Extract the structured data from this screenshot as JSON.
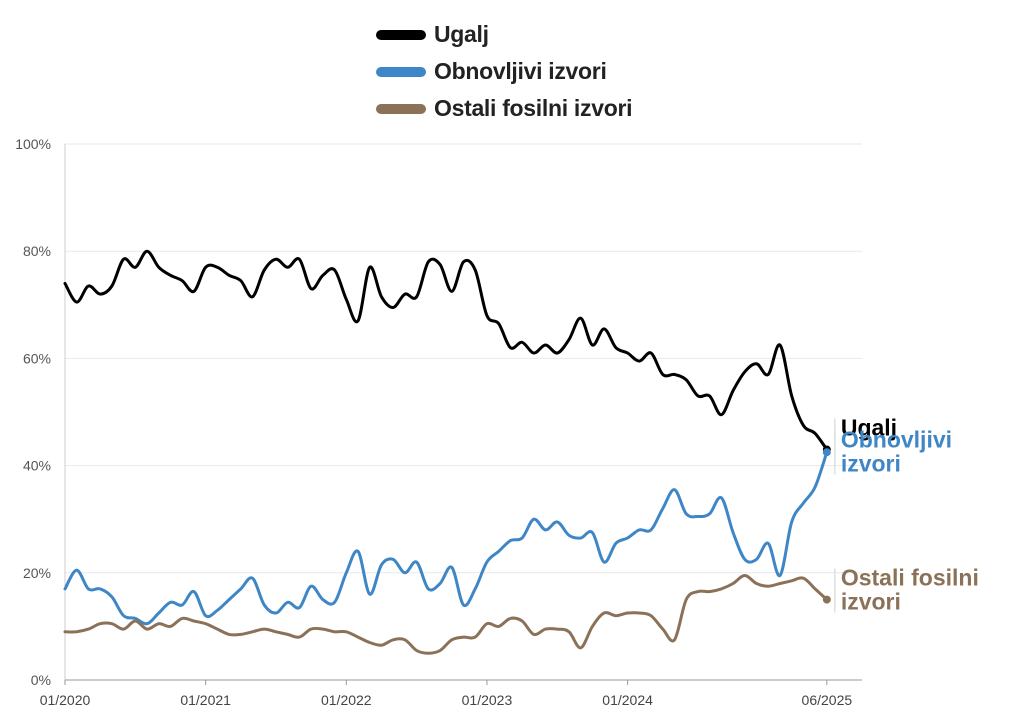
{
  "chart_data": {
    "type": "line",
    "yformat": "percent",
    "ylim": [
      0,
      100
    ],
    "xlim": [
      "2020-01",
      "2025-09"
    ],
    "grid": true,
    "legend_position": "top",
    "y_ticks": [
      "0%",
      "20%",
      "40%",
      "60%",
      "80%",
      "100%"
    ],
    "x_ticks": [
      {
        "date": "2020-01",
        "label": "01/2020"
      },
      {
        "date": "2021-01",
        "label": "01/2021"
      },
      {
        "date": "2022-01",
        "label": "01/2022"
      },
      {
        "date": "2023-01",
        "label": "01/2023"
      },
      {
        "date": "2024-01",
        "label": "01/2024"
      },
      {
        "date": "2025-06",
        "label": "06/2025"
      }
    ],
    "series": [
      {
        "name": "Ugalj",
        "end_label": [
          "Ugalj"
        ],
        "color": "#000000",
        "values": [
          [
            "2020-01",
            74
          ],
          [
            "2020-02",
            70.5
          ],
          [
            "2020-03",
            73.5
          ],
          [
            "2020-04",
            72
          ],
          [
            "2020-05",
            73.5
          ],
          [
            "2020-06",
            78.5
          ],
          [
            "2020-07",
            77
          ],
          [
            "2020-08",
            80
          ],
          [
            "2020-09",
            77
          ],
          [
            "2020-10",
            75.5
          ],
          [
            "2020-11",
            74.5
          ],
          [
            "2020-12",
            72.5
          ],
          [
            "2021-01",
            77
          ],
          [
            "2021-02",
            77
          ],
          [
            "2021-03",
            75.5
          ],
          [
            "2021-04",
            74.5
          ],
          [
            "2021-05",
            71.5
          ],
          [
            "2021-06",
            76.5
          ],
          [
            "2021-07",
            78.5
          ],
          [
            "2021-08",
            77
          ],
          [
            "2021-09",
            78.5
          ],
          [
            "2021-10",
            73
          ],
          [
            "2021-11",
            75.5
          ],
          [
            "2021-12",
            76.5
          ],
          [
            "2022-01",
            71
          ],
          [
            "2022-02",
            67
          ],
          [
            "2022-03",
            77
          ],
          [
            "2022-04",
            71.5
          ],
          [
            "2022-05",
            69.5
          ],
          [
            "2022-06",
            72
          ],
          [
            "2022-07",
            71.5
          ],
          [
            "2022-08",
            78
          ],
          [
            "2022-09",
            77.5
          ],
          [
            "2022-10",
            72.5
          ],
          [
            "2022-11",
            78
          ],
          [
            "2022-12",
            76.5
          ],
          [
            "2023-01",
            68
          ],
          [
            "2023-02",
            66.5
          ],
          [
            "2023-03",
            62
          ],
          [
            "2023-04",
            63
          ],
          [
            "2023-05",
            61
          ],
          [
            "2023-06",
            62.5
          ],
          [
            "2023-07",
            61
          ],
          [
            "2023-08",
            63.5
          ],
          [
            "2023-09",
            67.5
          ],
          [
            "2023-10",
            62.5
          ],
          [
            "2023-11",
            65.5
          ],
          [
            "2023-12",
            62
          ],
          [
            "2024-01",
            61
          ],
          [
            "2024-02",
            59.5
          ],
          [
            "2024-03",
            61
          ],
          [
            "2024-04",
            57
          ],
          [
            "2024-05",
            57
          ],
          [
            "2024-06",
            56
          ],
          [
            "2024-07",
            53
          ],
          [
            "2024-08",
            53
          ],
          [
            "2024-09",
            49.5
          ],
          [
            "2024-10",
            54
          ],
          [
            "2024-11",
            57.5
          ],
          [
            "2024-12",
            59
          ],
          [
            "2025-01",
            57
          ],
          [
            "2025-02",
            62.5
          ],
          [
            "2025-03",
            53
          ],
          [
            "2025-04",
            47.5
          ],
          [
            "2025-05",
            46
          ],
          [
            "2025-06",
            43
          ]
        ]
      },
      {
        "name": "Obnovljivi izvori",
        "end_label": [
          "Obnovljivi",
          "izvori"
        ],
        "color": "#3f86c6",
        "values": [
          [
            "2020-01",
            17
          ],
          [
            "2020-02",
            20.5
          ],
          [
            "2020-03",
            17
          ],
          [
            "2020-04",
            17
          ],
          [
            "2020-05",
            15.5
          ],
          [
            "2020-06",
            12
          ],
          [
            "2020-07",
            11.5
          ],
          [
            "2020-08",
            10.5
          ],
          [
            "2020-09",
            12.5
          ],
          [
            "2020-10",
            14.5
          ],
          [
            "2020-11",
            14
          ],
          [
            "2020-12",
            16.5
          ],
          [
            "2021-01",
            12
          ],
          [
            "2021-02",
            13
          ],
          [
            "2021-03",
            15
          ],
          [
            "2021-04",
            17
          ],
          [
            "2021-05",
            19
          ],
          [
            "2021-06",
            14
          ],
          [
            "2021-07",
            12.5
          ],
          [
            "2021-08",
            14.5
          ],
          [
            "2021-09",
            13.5
          ],
          [
            "2021-10",
            17.5
          ],
          [
            "2021-11",
            15
          ],
          [
            "2021-12",
            14.5
          ],
          [
            "2022-01",
            20
          ],
          [
            "2022-02",
            24
          ],
          [
            "2022-03",
            16
          ],
          [
            "2022-04",
            21.5
          ],
          [
            "2022-05",
            22.5
          ],
          [
            "2022-06",
            20
          ],
          [
            "2022-07",
            22
          ],
          [
            "2022-08",
            17
          ],
          [
            "2022-09",
            18
          ],
          [
            "2022-10",
            21
          ],
          [
            "2022-11",
            14
          ],
          [
            "2022-12",
            17
          ],
          [
            "2023-01",
            22
          ],
          [
            "2023-02",
            24
          ],
          [
            "2023-03",
            26
          ],
          [
            "2023-04",
            26.5
          ],
          [
            "2023-05",
            30
          ],
          [
            "2023-06",
            28
          ],
          [
            "2023-07",
            29.5
          ],
          [
            "2023-08",
            27
          ],
          [
            "2023-09",
            26.5
          ],
          [
            "2023-10",
            27.5
          ],
          [
            "2023-11",
            22
          ],
          [
            "2023-12",
            25.5
          ],
          [
            "2024-01",
            26.5
          ],
          [
            "2024-02",
            28
          ],
          [
            "2024-03",
            28
          ],
          [
            "2024-04",
            32
          ],
          [
            "2024-05",
            35.5
          ],
          [
            "2024-06",
            31
          ],
          [
            "2024-07",
            30.5
          ],
          [
            "2024-08",
            31
          ],
          [
            "2024-09",
            34
          ],
          [
            "2024-10",
            27.5
          ],
          [
            "2024-11",
            22.5
          ],
          [
            "2024-12",
            22.5
          ],
          [
            "2025-01",
            25.5
          ],
          [
            "2025-02",
            19.5
          ],
          [
            "2025-03",
            29.5
          ],
          [
            "2025-04",
            33
          ],
          [
            "2025-05",
            36
          ],
          [
            "2025-06",
            42.5
          ]
        ]
      },
      {
        "name": "Ostali fosilni izvori",
        "end_label": [
          "Ostali fosilni",
          "izvori"
        ],
        "color": "#8b7158",
        "values": [
          [
            "2020-01",
            9
          ],
          [
            "2020-02",
            9
          ],
          [
            "2020-03",
            9.5
          ],
          [
            "2020-04",
            10.5
          ],
          [
            "2020-05",
            10.5
          ],
          [
            "2020-06",
            9.5
          ],
          [
            "2020-07",
            11
          ],
          [
            "2020-08",
            9.5
          ],
          [
            "2020-09",
            10.5
          ],
          [
            "2020-10",
            10
          ],
          [
            "2020-11",
            11.5
          ],
          [
            "2020-12",
            11
          ],
          [
            "2021-01",
            10.5
          ],
          [
            "2021-02",
            9.5
          ],
          [
            "2021-03",
            8.5
          ],
          [
            "2021-04",
            8.5
          ],
          [
            "2021-05",
            9
          ],
          [
            "2021-06",
            9.5
          ],
          [
            "2021-07",
            9
          ],
          [
            "2021-08",
            8.5
          ],
          [
            "2021-09",
            8
          ],
          [
            "2021-10",
            9.5
          ],
          [
            "2021-11",
            9.5
          ],
          [
            "2021-12",
            9
          ],
          [
            "2022-01",
            9
          ],
          [
            "2022-02",
            8
          ],
          [
            "2022-03",
            7
          ],
          [
            "2022-04",
            6.5
          ],
          [
            "2022-05",
            7.5
          ],
          [
            "2022-06",
            7.5
          ],
          [
            "2022-07",
            5.5
          ],
          [
            "2022-08",
            5
          ],
          [
            "2022-09",
            5.5
          ],
          [
            "2022-10",
            7.5
          ],
          [
            "2022-11",
            8
          ],
          [
            "2022-12",
            8
          ],
          [
            "2023-01",
            10.5
          ],
          [
            "2023-02",
            10
          ],
          [
            "2023-03",
            11.5
          ],
          [
            "2023-04",
            11
          ],
          [
            "2023-05",
            8.5
          ],
          [
            "2023-06",
            9.5
          ],
          [
            "2023-07",
            9.5
          ],
          [
            "2023-08",
            9
          ],
          [
            "2023-09",
            6
          ],
          [
            "2023-10",
            10
          ],
          [
            "2023-11",
            12.5
          ],
          [
            "2023-12",
            12
          ],
          [
            "2024-01",
            12.5
          ],
          [
            "2024-02",
            12.5
          ],
          [
            "2024-03",
            12
          ],
          [
            "2024-04",
            9.5
          ],
          [
            "2024-05",
            7.5
          ],
          [
            "2024-06",
            15
          ],
          [
            "2024-07",
            16.5
          ],
          [
            "2024-08",
            16.5
          ],
          [
            "2024-09",
            17
          ],
          [
            "2024-10",
            18
          ],
          [
            "2024-11",
            19.5
          ],
          [
            "2024-12",
            18
          ],
          [
            "2025-01",
            17.5
          ],
          [
            "2025-02",
            18
          ],
          [
            "2025-03",
            18.5
          ],
          [
            "2025-04",
            19
          ],
          [
            "2025-05",
            17
          ],
          [
            "2025-06",
            15
          ]
        ]
      }
    ]
  }
}
